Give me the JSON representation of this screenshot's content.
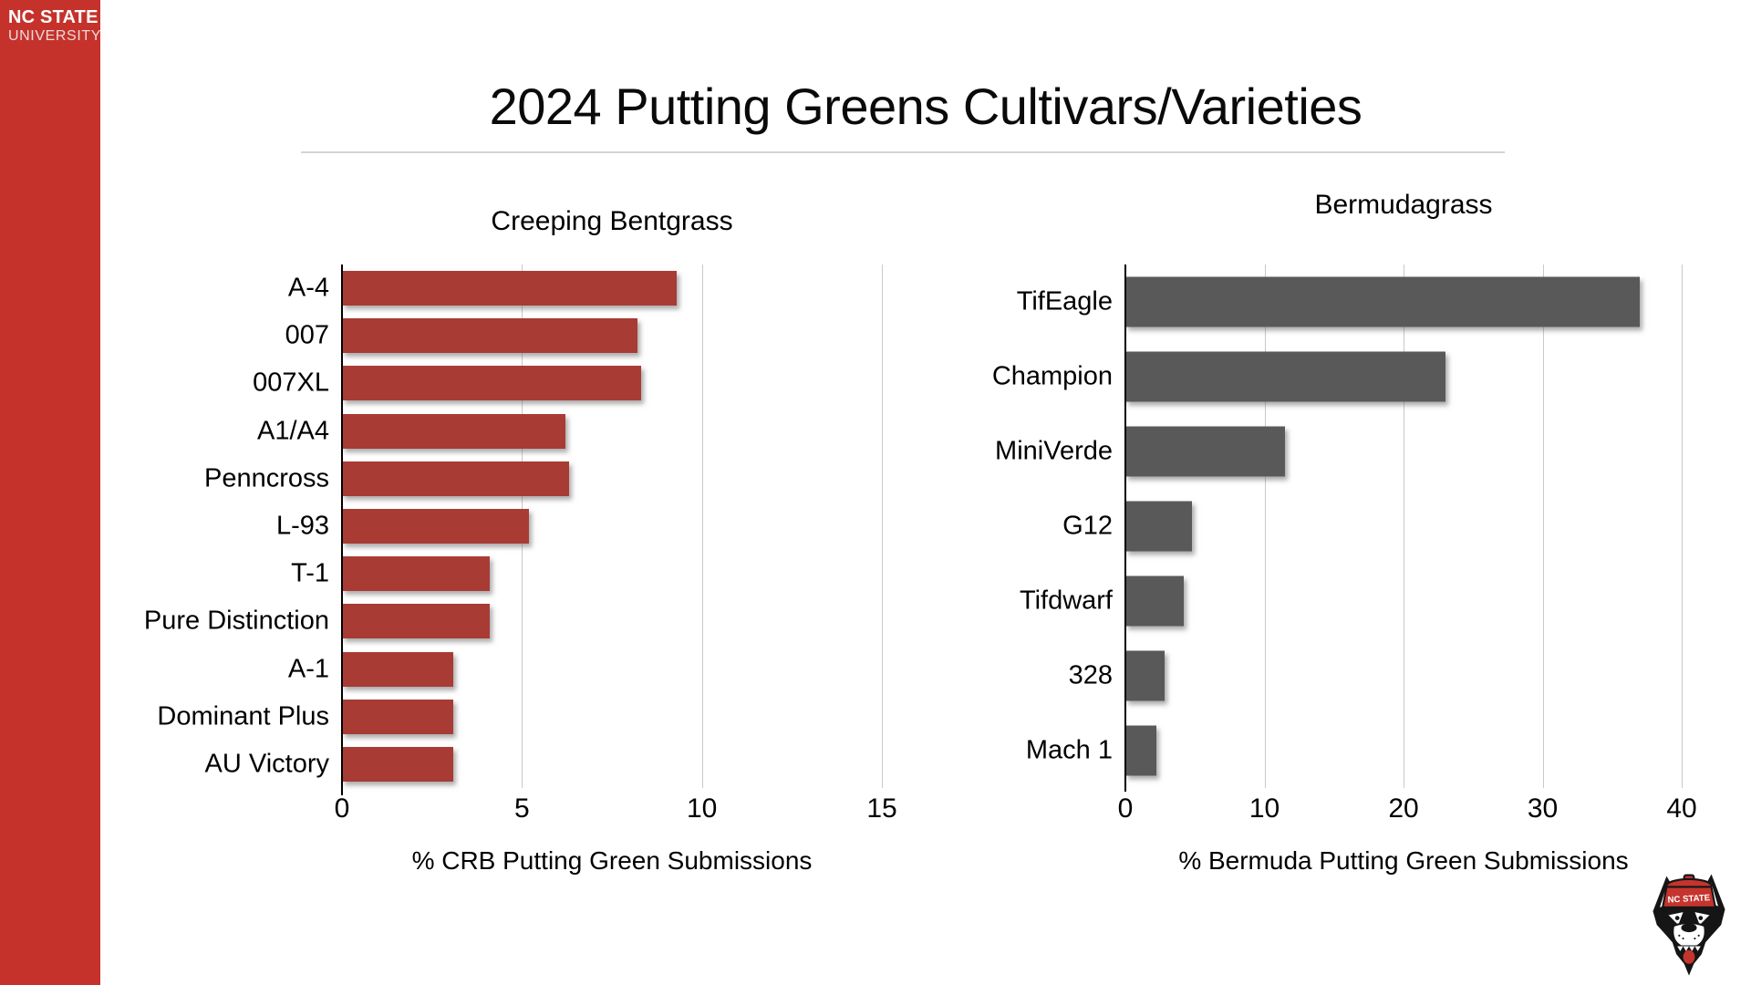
{
  "brand": {
    "name": "NC STATE",
    "subname": "UNIVERSITY"
  },
  "slide": {
    "title": "2024 Putting Greens Cultivars/Varieties"
  },
  "logo": {
    "cap_text": "NC STATE"
  },
  "colors": {
    "sidebar_red": "#C5322B",
    "bentgrass_bar_red": "#A93B35",
    "bermuda_bar_gray": "#595959",
    "gridline_gray": "#C9C9C9",
    "divider_gray": "#D4D4D4"
  },
  "chart_data": [
    {
      "type": "bar",
      "orientation": "horizontal",
      "title": "Creeping Bentgrass",
      "xlabel": "% CRB Putting Green Submissions",
      "xlim": [
        0,
        15
      ],
      "ticks": [
        0,
        5,
        10,
        15
      ],
      "grid": true,
      "legend": "none",
      "bar_color": "#A93B35",
      "categories": [
        "A-4",
        "007",
        "007XL",
        "A1/A4",
        "Penncross",
        "L-93",
        "T-1",
        "Pure Distinction",
        "A-1",
        "Dominant Plus",
        "AU Victory"
      ],
      "values": [
        9.3,
        8.2,
        8.3,
        6.2,
        6.3,
        5.2,
        4.1,
        4.1,
        3.1,
        3.1,
        3.1
      ]
    },
    {
      "type": "bar",
      "orientation": "horizontal",
      "title": "Bermudagrass",
      "xlabel": "% Bermuda Putting Green Submissions",
      "xlim": [
        0,
        40
      ],
      "ticks": [
        0,
        10,
        20,
        30,
        40
      ],
      "grid": true,
      "legend": "none",
      "bar_color": "#595959",
      "categories": [
        "TifEagle",
        "Champion",
        "MiniVerde",
        "G12",
        "Tifdwarf",
        "328",
        "Mach 1"
      ],
      "values": [
        37,
        23,
        11.5,
        4.8,
        4.2,
        2.8,
        2.2
      ]
    }
  ]
}
